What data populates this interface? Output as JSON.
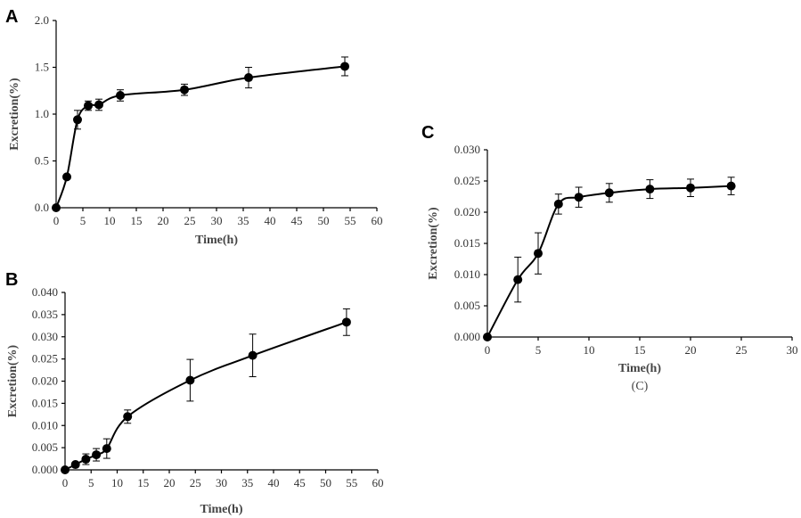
{
  "chart_data": [
    {
      "panel": "A",
      "type": "line",
      "xlabel": "Time(h)",
      "ylabel": "Excretion(%)",
      "xlim": [
        0,
        60
      ],
      "ylim": [
        0,
        2.0
      ],
      "xticks": [
        0,
        5,
        10,
        15,
        20,
        25,
        30,
        35,
        40,
        45,
        50,
        55,
        60
      ],
      "yticks": [
        "0.0",
        "0.5",
        "1.0",
        "1.5",
        "2.0"
      ],
      "x": [
        0,
        2,
        4,
        6,
        8,
        12,
        24,
        36,
        54
      ],
      "y": [
        0.0,
        0.33,
        0.94,
        1.09,
        1.1,
        1.2,
        1.26,
        1.39,
        1.51
      ],
      "err": [
        0,
        0.02,
        0.1,
        0.05,
        0.06,
        0.06,
        0.06,
        0.11,
        0.1
      ]
    },
    {
      "panel": "B",
      "type": "line",
      "xlabel": "Time(h)",
      "ylabel": "Excretion(%)",
      "xlim": [
        0,
        60
      ],
      "ylim": [
        0,
        0.04
      ],
      "xticks": [
        0,
        5,
        10,
        15,
        20,
        25,
        30,
        35,
        40,
        45,
        50,
        55,
        60
      ],
      "yticks": [
        "0.000",
        "0.005",
        "0.010",
        "0.015",
        "0.020",
        "0.025",
        "0.030",
        "0.035",
        "0.040"
      ],
      "x": [
        0,
        2,
        4,
        6,
        8,
        12,
        24,
        36,
        54
      ],
      "y": [
        0.0,
        0.0012,
        0.0024,
        0.0034,
        0.0048,
        0.012,
        0.0202,
        0.0258,
        0.0333
      ],
      "err": [
        0,
        0.0005,
        0.0012,
        0.0014,
        0.0022,
        0.0015,
        0.0047,
        0.0048,
        0.003
      ]
    },
    {
      "panel": "C",
      "type": "line",
      "xlabel": "Time(h)",
      "ylabel": "Excretion(%)",
      "caption": "(C)",
      "xlim": [
        0,
        30
      ],
      "ylim": [
        0,
        0.03
      ],
      "xticks": [
        0,
        5,
        10,
        15,
        20,
        25,
        30
      ],
      "yticks": [
        "0.000",
        "0.005",
        "0.010",
        "0.015",
        "0.020",
        "0.025",
        "0.030"
      ],
      "x": [
        0,
        3,
        5,
        7,
        9,
        12,
        16,
        20,
        24
      ],
      "y": [
        0.0,
        0.0092,
        0.0134,
        0.0213,
        0.0224,
        0.0231,
        0.0237,
        0.0239,
        0.0242
      ],
      "err": [
        0,
        0.0036,
        0.0033,
        0.0016,
        0.0016,
        0.0015,
        0.0015,
        0.0014,
        0.0014
      ]
    }
  ]
}
